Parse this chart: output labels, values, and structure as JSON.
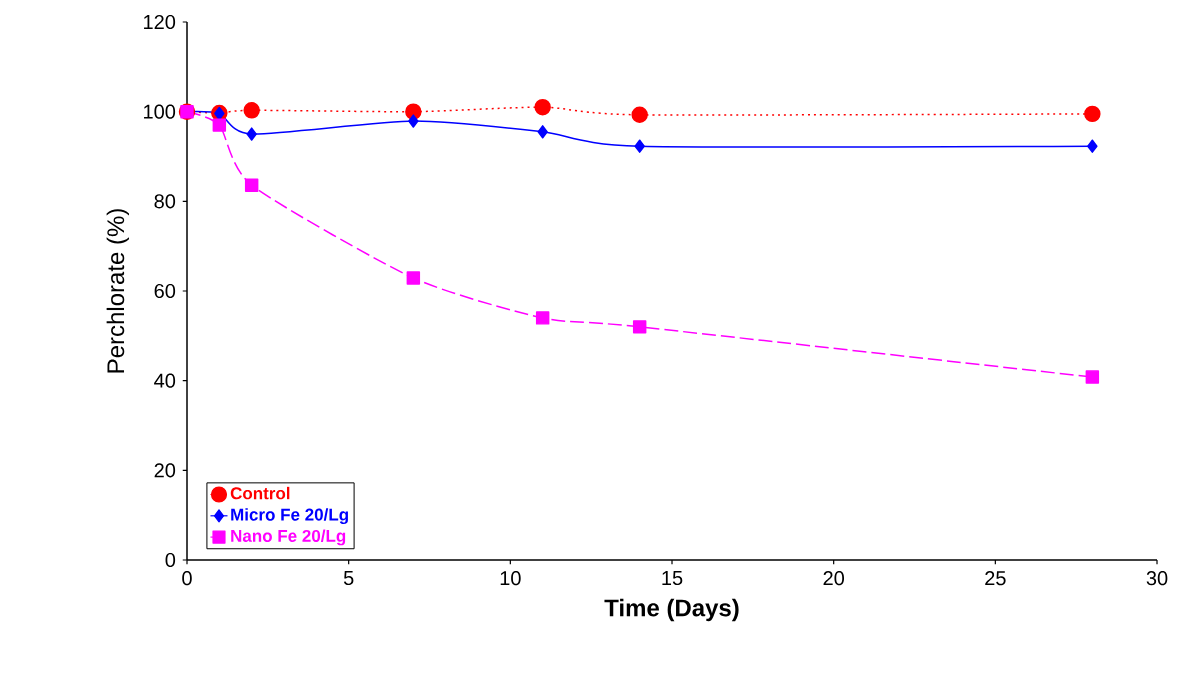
{
  "chart_data": {
    "type": "line",
    "xlabel": "Time (Days)",
    "ylabel": "Perchlorate (%)",
    "xlim": [
      0,
      30
    ],
    "xticks": [
      0,
      5,
      10,
      15,
      20,
      25,
      30
    ],
    "ylim": [
      0,
      120
    ],
    "yticks": [
      0,
      20,
      40,
      60,
      80,
      100,
      120
    ],
    "grid": false,
    "legend": "bottom left",
    "series": [
      {
        "name": "Control",
        "color": "#ff0000",
        "marker": "circle",
        "line_style": "dotted",
        "x": [
          0,
          1,
          2,
          7,
          11,
          14,
          28
        ],
        "values": [
          100,
          99.7,
          100.3,
          100,
          101,
          99.3,
          99.5
        ]
      },
      {
        "name": "Micro Fe 20/Lg",
        "color": "#0000ff",
        "marker": "diamond",
        "line_style": "solid",
        "x": [
          0,
          1,
          2,
          7,
          11,
          14,
          28
        ],
        "values": [
          100,
          99.6,
          95,
          97.9,
          95.5,
          92.3,
          92.3
        ]
      },
      {
        "name": "Nano Fe 20/Lg",
        "color": "#ff00ff",
        "marker": "square",
        "line_style": "dashed",
        "x": [
          0,
          1,
          2,
          7,
          11,
          14,
          28
        ],
        "values": [
          100,
          97,
          83.6,
          62.9,
          54,
          52,
          40.8
        ]
      }
    ]
  }
}
